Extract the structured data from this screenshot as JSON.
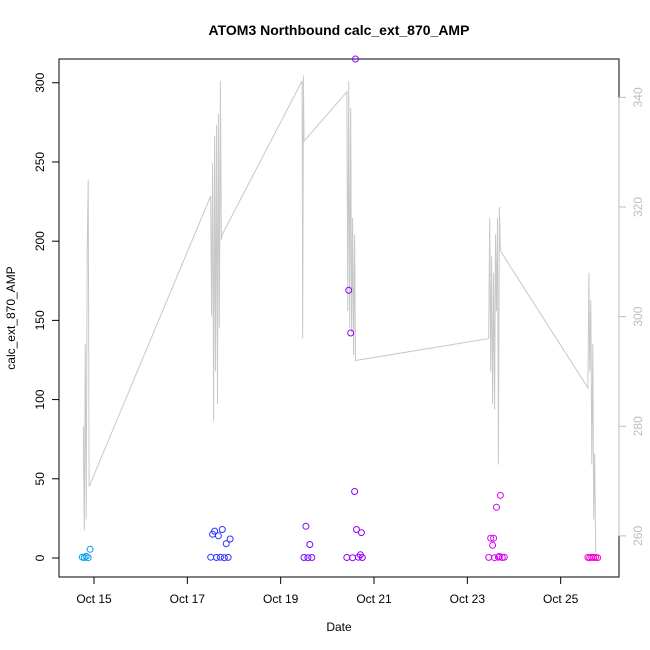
{
  "chart_data": {
    "type": "scatter",
    "title": "ATOM3 Northbound calc_ext_870_AMP",
    "xlabel": "Date",
    "ylabel": "calc_ext_870_AMP",
    "xlim": [
      "2017-10-14T06:00",
      "2017-10-26T06:00"
    ],
    "ylim": [
      -12,
      315
    ],
    "y2lim": [
      252.5,
      347
    ],
    "x_ticks": [
      {
        "date": "2017-10-15",
        "label": "Oct 15"
      },
      {
        "date": "2017-10-17",
        "label": "Oct 17"
      },
      {
        "date": "2017-10-19",
        "label": "Oct 19"
      },
      {
        "date": "2017-10-21",
        "label": "Oct 21"
      },
      {
        "date": "2017-10-23",
        "label": "Oct 23"
      },
      {
        "date": "2017-10-25",
        "label": "Oct 25"
      }
    ],
    "y_ticks": [
      0,
      50,
      100,
      150,
      200,
      250,
      300
    ],
    "y2_ticks": [
      260,
      280,
      300,
      320,
      340
    ],
    "grid": false,
    "colors": {
      "line": "#c8c8c8",
      "right_axis": "#bdbdbd",
      "points_gradient": [
        "#00b4e6",
        "#1e3cff",
        "#8c00ff",
        "#d400ff",
        "#ff00c8"
      ]
    },
    "series": [
      {
        "axis": "left",
        "style": "points",
        "points": [
          [
            "2017-10-14T18:00",
            0.5
          ],
          [
            "2017-10-14T19:00",
            0.3
          ],
          [
            "2017-10-14T20:00",
            1
          ],
          [
            "2017-10-14T21:00",
            0.2
          ],
          [
            "2017-10-14T22:00",
            5.5
          ],
          [
            "2017-10-17T12:00",
            0.5
          ],
          [
            "2017-10-17T13:00",
            15
          ],
          [
            "2017-10-17T14:00",
            17
          ],
          [
            "2017-10-17T15:00",
            0.3
          ],
          [
            "2017-10-17T16:00",
            14
          ],
          [
            "2017-10-17T17:00",
            0.5
          ],
          [
            "2017-10-17T18:00",
            18
          ],
          [
            "2017-10-17T19:00",
            0.2
          ],
          [
            "2017-10-17T20:00",
            9
          ],
          [
            "2017-10-17T21:00",
            0.4
          ],
          [
            "2017-10-17T22:00",
            12
          ],
          [
            "2017-10-19T12:00",
            0.3
          ],
          [
            "2017-10-19T13:00",
            20
          ],
          [
            "2017-10-19T14:00",
            0.2
          ],
          [
            "2017-10-19T15:00",
            8.5
          ],
          [
            "2017-10-19T16:00",
            0.3
          ],
          [
            "2017-10-20T10:00",
            0.3
          ],
          [
            "2017-10-20T11:00",
            169
          ],
          [
            "2017-10-20T12:00",
            142
          ],
          [
            "2017-10-20T13:00",
            0.2
          ],
          [
            "2017-10-20T14:00",
            42
          ],
          [
            "2017-10-20T14:30",
            315
          ],
          [
            "2017-10-20T15:00",
            18
          ],
          [
            "2017-10-20T16:00",
            0.5
          ],
          [
            "2017-10-20T17:00",
            2
          ],
          [
            "2017-10-20T17:30",
            16
          ],
          [
            "2017-10-20T18:00",
            0.3
          ],
          [
            "2017-10-23T11:00",
            0.4
          ],
          [
            "2017-10-23T12:00",
            12.5
          ],
          [
            "2017-10-23T13:00",
            8
          ],
          [
            "2017-10-23T13:30",
            12.5
          ],
          [
            "2017-10-23T14:00",
            0.2
          ],
          [
            "2017-10-23T15:00",
            32
          ],
          [
            "2017-10-23T16:00",
            0.5
          ],
          [
            "2017-10-23T16:30",
            1
          ],
          [
            "2017-10-23T17:00",
            39.5
          ],
          [
            "2017-10-23T18:00",
            0.3
          ],
          [
            "2017-10-23T19:00",
            0.5
          ],
          [
            "2017-10-25T14:00",
            0.4
          ],
          [
            "2017-10-25T15:00",
            0.2
          ],
          [
            "2017-10-25T16:00",
            0.5
          ],
          [
            "2017-10-25T17:00",
            0.3
          ],
          [
            "2017-10-25T18:00",
            0.4
          ],
          [
            "2017-10-25T19:00",
            0.2
          ]
        ]
      },
      {
        "axis": "right",
        "style": "line",
        "points": [
          [
            "2017-10-14T18:30",
            280
          ],
          [
            "2017-10-14T19:00",
            261
          ],
          [
            "2017-10-14T19:30",
            295
          ],
          [
            "2017-10-14T20:00",
            263
          ],
          [
            "2017-10-14T20:30",
            312
          ],
          [
            "2017-10-14T21:00",
            325
          ],
          [
            "2017-10-14T21:30",
            269
          ],
          [
            "2017-10-17T12:00",
            322
          ],
          [
            "2017-10-17T12:30",
            300
          ],
          [
            "2017-10-17T13:00",
            328
          ],
          [
            "2017-10-17T13:30",
            281
          ],
          [
            "2017-10-17T14:00",
            333
          ],
          [
            "2017-10-17T14:30",
            290
          ],
          [
            "2017-10-17T15:00",
            335
          ],
          [
            "2017-10-17T15:30",
            284
          ],
          [
            "2017-10-17T16:00",
            337
          ],
          [
            "2017-10-17T16:30",
            298
          ],
          [
            "2017-10-17T17:00",
            343
          ],
          [
            "2017-10-17T17:30",
            314
          ],
          [
            "2017-10-17T18:00",
            315
          ],
          [
            "2017-10-19T11:00",
            343
          ],
          [
            "2017-10-19T11:20",
            296
          ],
          [
            "2017-10-19T11:40",
            344
          ],
          [
            "2017-10-19T12:00",
            332
          ],
          [
            "2017-10-20T10:00",
            341
          ],
          [
            "2017-10-20T10:30",
            301
          ],
          [
            "2017-10-20T11:00",
            343
          ],
          [
            "2017-10-20T11:30",
            298
          ],
          [
            "2017-10-20T12:00",
            338
          ],
          [
            "2017-10-20T12:30",
            297
          ],
          [
            "2017-10-20T13:00",
            318
          ],
          [
            "2017-10-20T13:30",
            293
          ],
          [
            "2017-10-20T14:00",
            315
          ],
          [
            "2017-10-20T14:30",
            292
          ],
          [
            "2017-10-23T11:00",
            296
          ],
          [
            "2017-10-23T11:30",
            318
          ],
          [
            "2017-10-23T12:00",
            290
          ],
          [
            "2017-10-23T12:30",
            311
          ],
          [
            "2017-10-23T13:00",
            284
          ],
          [
            "2017-10-23T13:30",
            308
          ],
          [
            "2017-10-23T14:00",
            283
          ],
          [
            "2017-10-23T14:30",
            315
          ],
          [
            "2017-10-23T15:00",
            301
          ],
          [
            "2017-10-23T15:30",
            318
          ],
          [
            "2017-10-23T16:00",
            273
          ],
          [
            "2017-10-23T16:30",
            320
          ],
          [
            "2017-10-23T17:00",
            312
          ],
          [
            "2017-10-25T14:00",
            287
          ],
          [
            "2017-10-25T14:30",
            308
          ],
          [
            "2017-10-25T15:00",
            290
          ],
          [
            "2017-10-25T15:30",
            303
          ],
          [
            "2017-10-25T16:00",
            273
          ],
          [
            "2017-10-25T16:30",
            295
          ],
          [
            "2017-10-25T17:00",
            263
          ],
          [
            "2017-10-25T17:30",
            275
          ],
          [
            "2017-10-25T18:00",
            257
          ]
        ]
      }
    ]
  }
}
